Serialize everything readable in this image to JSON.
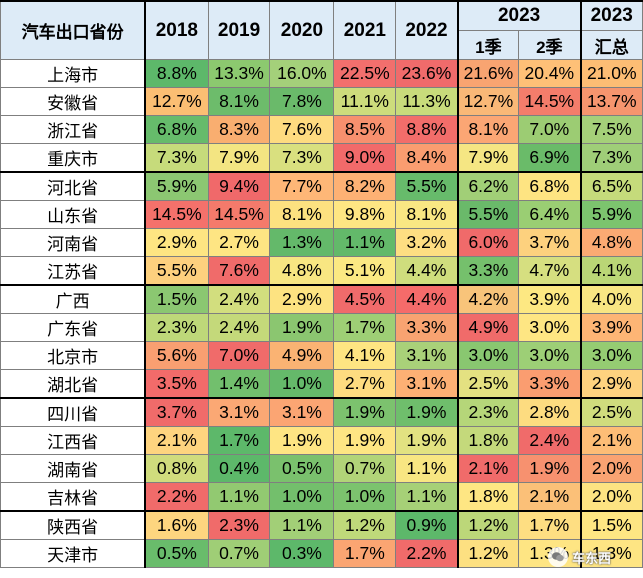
{
  "table": {
    "corner_label": "汽车出口省份",
    "years": [
      "2018",
      "2019",
      "2020",
      "2021",
      "2022"
    ],
    "year_2023": "2023",
    "q1_label": "1季",
    "q2_label": "2季",
    "total_label": "汇总",
    "rows": [
      {
        "province": "上海市",
        "values": [
          "8.8%",
          "13.3%",
          "16.0%",
          "22.5%",
          "23.6%",
          "21.6%",
          "20.4%",
          "21.0%"
        ],
        "colors": [
          "#5db86a",
          "#8cc96f",
          "#a4d07a",
          "#f26f6d",
          "#f06b6b",
          "#f8a471",
          "#fec077",
          "#fdbd74"
        ]
      },
      {
        "province": "安徽省",
        "values": [
          "12.7%",
          "8.1%",
          "7.8%",
          "11.1%",
          "11.3%",
          "12.7%",
          "14.5%",
          "13.7%"
        ],
        "colors": [
          "#fbbe73",
          "#6dbc6b",
          "#6aba6a",
          "#cddc7c",
          "#c8db7b",
          "#f9b877",
          "#f47d6b",
          "#f6956e"
        ]
      },
      {
        "province": "浙江省",
        "values": [
          "6.8%",
          "8.3%",
          "7.6%",
          "8.5%",
          "8.8%",
          "8.1%",
          "7.0%",
          "7.5%"
        ],
        "colors": [
          "#66bb6b",
          "#f9ae70",
          "#fedb80",
          "#f7906e",
          "#f26d6a",
          "#fba674",
          "#9ccc73",
          "#a5d079"
        ]
      },
      {
        "province": "重庆市",
        "values": [
          "7.3%",
          "7.9%",
          "7.3%",
          "9.0%",
          "8.4%",
          "7.9%",
          "6.9%",
          "7.3%"
        ],
        "colors": [
          "#c6db7b",
          "#f3e582",
          "#d9e07f",
          "#f26a6a",
          "#fa9d70",
          "#f5e683",
          "#6abb69",
          "#9fce78"
        ]
      },
      {
        "province": "河北省",
        "values": [
          "5.9%",
          "9.4%",
          "7.7%",
          "8.2%",
          "5.5%",
          "6.2%",
          "6.8%",
          "6.5%"
        ],
        "colors": [
          "#8cc772",
          "#f0696a",
          "#feb777",
          "#fdb174",
          "#67bb6b",
          "#a1cf77",
          "#fee482",
          "#c5db7b"
        ]
      },
      {
        "province": "山东省",
        "values": [
          "14.5%",
          "14.5%",
          "8.1%",
          "9.8%",
          "8.1%",
          "5.5%",
          "6.4%",
          "5.9%"
        ],
        "colors": [
          "#f4716b",
          "#f47a6b",
          "#fde180",
          "#ffe683",
          "#f9e783",
          "#6ab96a",
          "#9ace73",
          "#7cc46e"
        ]
      },
      {
        "province": "河南省",
        "values": [
          "2.9%",
          "2.7%",
          "1.3%",
          "1.1%",
          "3.2%",
          "6.0%",
          "3.7%",
          "4.8%"
        ],
        "colors": [
          "#fee582",
          "#fee583",
          "#64b96a",
          "#63b96a",
          "#fede82",
          "#f06a6a",
          "#fdd17e",
          "#fbaa73"
        ]
      },
      {
        "province": "江苏省",
        "values": [
          "5.5%",
          "7.6%",
          "4.8%",
          "5.1%",
          "4.4%",
          "3.3%",
          "4.7%",
          "4.1%"
        ],
        "colors": [
          "#fdd07e",
          "#f06b6a",
          "#f8e682",
          "#fbe983",
          "#cfdd7d",
          "#75c06c",
          "#d6df80",
          "#bad676"
        ]
      },
      {
        "province": "广西",
        "values": [
          "1.5%",
          "2.4%",
          "2.9%",
          "4.5%",
          "4.4%",
          "4.2%",
          "3.9%",
          "4.0%"
        ],
        "colors": [
          "#8bc771",
          "#d2de7e",
          "#fde381",
          "#f06b6b",
          "#f56b6a",
          "#f8c47a",
          "#fde882",
          "#f8e683"
        ]
      },
      {
        "province": "广东省",
        "values": [
          "2.3%",
          "2.4%",
          "1.9%",
          "1.7%",
          "3.3%",
          "4.9%",
          "3.0%",
          "3.9%"
        ],
        "colors": [
          "#bed879",
          "#c4d97a",
          "#8bc670",
          "#9ecf75",
          "#f8a371",
          "#f06b6a",
          "#fee683",
          "#fdb575"
        ]
      },
      {
        "province": "北京市",
        "values": [
          "5.6%",
          "7.0%",
          "4.9%",
          "4.1%",
          "3.1%",
          "3.0%",
          "3.0%",
          "3.0%"
        ],
        "colors": [
          "#f99f71",
          "#f06b6a",
          "#fab373",
          "#fee582",
          "#a9d179",
          "#89c770",
          "#9dcf76",
          "#95cc72"
        ]
      },
      {
        "province": "湖北省",
        "values": [
          "3.5%",
          "1.4%",
          "1.0%",
          "2.7%",
          "3.1%",
          "2.5%",
          "3.3%",
          "2.9%"
        ],
        "colors": [
          "#f26b6a",
          "#72bf6d",
          "#65b96a",
          "#fedc80",
          "#fdb074",
          "#e4e181",
          "#fa9d70",
          "#fed27f"
        ]
      },
      {
        "province": "四川省",
        "values": [
          "3.7%",
          "3.1%",
          "3.1%",
          "1.9%",
          "1.9%",
          "2.3%",
          "2.8%",
          "2.5%"
        ],
        "colors": [
          "#f06b6a",
          "#fba874",
          "#fba573",
          "#7cc26e",
          "#6fbe6c",
          "#b5d679",
          "#fddc80",
          "#d0dc7d"
        ]
      },
      {
        "province": "江西省",
        "values": [
          "2.1%",
          "1.7%",
          "1.9%",
          "1.9%",
          "1.9%",
          "1.8%",
          "2.4%",
          "2.1%"
        ],
        "colors": [
          "#fed47f",
          "#5db86a",
          "#fee583",
          "#fee583",
          "#e2e281",
          "#c4d97b",
          "#f06b6a",
          "#fdbd76"
        ]
      },
      {
        "province": "湖南省",
        "values": [
          "0.8%",
          "0.4%",
          "0.5%",
          "0.7%",
          "1.1%",
          "2.1%",
          "1.9%",
          "2.0%"
        ],
        "colors": [
          "#d0dc7d",
          "#5db86a",
          "#7ac16d",
          "#b2d478",
          "#f8e682",
          "#f06b6a",
          "#f7916f",
          "#faa372"
        ]
      },
      {
        "province": "吉林省",
        "values": [
          "2.2%",
          "1.1%",
          "1.0%",
          "1.0%",
          "1.1%",
          "1.8%",
          "2.1%",
          "2.0%"
        ],
        "colors": [
          "#f06b6a",
          "#92c971",
          "#73bf6c",
          "#7cc36e",
          "#a6d077",
          "#fee683",
          "#fbc078",
          "#fde382"
        ]
      },
      {
        "province": "陕西省",
        "values": [
          "1.6%",
          "2.3%",
          "1.1%",
          "1.2%",
          "0.9%",
          "1.2%",
          "1.7%",
          "1.5%"
        ],
        "colors": [
          "#fdd57f",
          "#f06b6a",
          "#a2cf77",
          "#bfd97a",
          "#5db86a",
          "#bcd779",
          "#fede82",
          "#fee683"
        ]
      },
      {
        "province": "天津市",
        "values": [
          "0.5%",
          "0.7%",
          "0.3%",
          "1.7%",
          "2.2%",
          "1.2%",
          "1.3%",
          "1.3%"
        ],
        "colors": [
          "#69bc6b",
          "#9fce76",
          "#5db86a",
          "#fba572",
          "#f06b6a",
          "#fde081",
          "#fee583",
          "#fee583"
        ]
      }
    ]
  },
  "watermark": {
    "text": "车东西"
  }
}
